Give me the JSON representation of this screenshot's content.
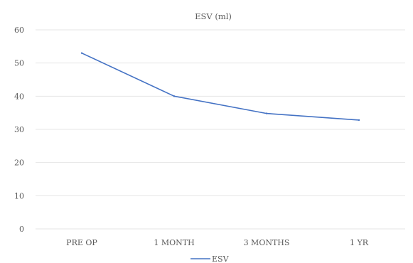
{
  "chart_data": {
    "type": "line",
    "title": "ESV (ml)",
    "xlabel": "",
    "ylabel": "",
    "categories": [
      "PRE OP",
      "1 MONTH",
      "3 MONTHS",
      "1 YR"
    ],
    "series": [
      {
        "name": "ESV",
        "values": [
          53,
          40,
          34.8,
          32.8
        ]
      }
    ],
    "ylim": [
      0,
      60
    ],
    "yticks": [
      0,
      10,
      20,
      30,
      40,
      50,
      60
    ],
    "grid": true,
    "legend": "bottom",
    "colors": {
      "series": "#4472C4",
      "grid": "#E6E6E6",
      "text": "#595959"
    }
  }
}
